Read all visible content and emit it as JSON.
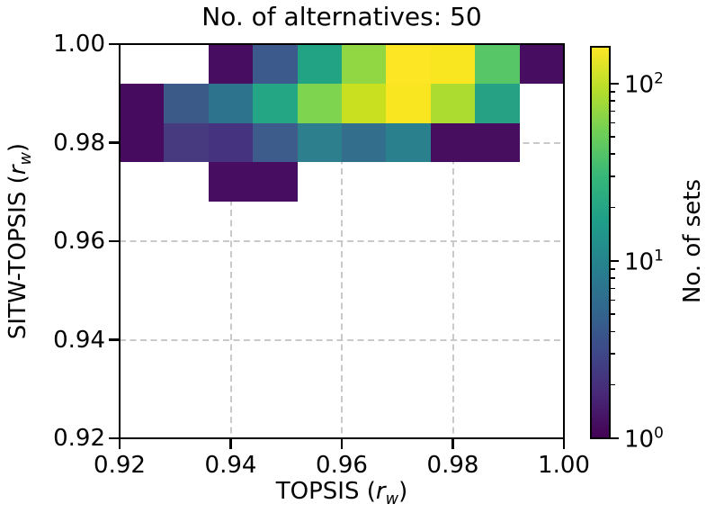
{
  "title": "No. of alternatives: 50",
  "axes": {
    "x": {
      "label": {
        "pre": "TOPSIS (",
        "var": "r",
        "sub": "w",
        "post": ")"
      },
      "ticks": [
        "0.92",
        "0.94",
        "0.96",
        "0.98",
        "1.00"
      ],
      "tick_values": [
        0.92,
        0.94,
        0.96,
        0.98,
        1.0
      ],
      "min": 0.92,
      "max": 1.0
    },
    "y": {
      "label": {
        "pre": "SITW-TOPSIS (",
        "var": "r",
        "sub": "w",
        "post": ")"
      },
      "ticks": [
        "1.00",
        "0.98",
        "0.96",
        "0.94",
        "0.92"
      ],
      "tick_values": [
        1.0,
        0.98,
        0.96,
        0.94,
        0.92
      ],
      "min": 0.92,
      "max": 1.0
    },
    "grid": {
      "style": "dashed",
      "color": "#c9c9c9"
    }
  },
  "colorbar": {
    "label": "No. of sets",
    "scale": "log",
    "vmin": 1,
    "vmax": 161,
    "major_ticks": [
      {
        "base": "10",
        "exp": "2",
        "value": 100
      },
      {
        "base": "10",
        "exp": "1",
        "value": 10
      },
      {
        "base": "10",
        "exp": "0",
        "value": 1
      }
    ],
    "minor_tick_values": [
      2,
      3,
      4,
      5,
      6,
      7,
      8,
      9,
      20,
      30,
      40,
      50,
      60,
      70,
      80,
      90
    ],
    "colormap": "viridis",
    "gradient_stops": [
      "#440154",
      "#482878",
      "#3e4989",
      "#31688e",
      "#26828e",
      "#1f9e89",
      "#35b779",
      "#6ece58",
      "#b5de2b",
      "#fde725"
    ]
  },
  "chart_data": {
    "type": "heatmap",
    "title": "No. of alternatives: 50",
    "xlabel": "TOPSIS (r_w)",
    "ylabel": "SITW-TOPSIS (r_w)",
    "colorbar_label": "No. of sets",
    "color_scale": "log",
    "colormap": "viridis",
    "xlim": [
      0.92,
      1.0
    ],
    "ylim": [
      0.92,
      1.0
    ],
    "x_bin_edges": [
      0.92,
      0.928,
      0.936,
      0.944,
      0.952,
      0.96,
      0.968,
      0.976,
      0.984,
      0.992,
      1.0
    ],
    "y_bin_edges": [
      0.92,
      0.928,
      0.936,
      0.944,
      0.952,
      0.96,
      0.968,
      0.976,
      0.984,
      0.992,
      1.0
    ],
    "row_order": "row 0 is the top bin (y 0.992-1.000), rows increase downward",
    "empty_color": "#ffffff",
    "cells": [
      {
        "row": 0,
        "col": 2,
        "count_estimate": 1,
        "color": "#470d60"
      },
      {
        "row": 0,
        "col": 3,
        "count_estimate": 5,
        "color": "#3d5a8c"
      },
      {
        "row": 0,
        "col": 4,
        "count_estimate": 28,
        "color": "#22a384"
      },
      {
        "row": 0,
        "col": 5,
        "count_estimate": 95,
        "color": "#90d743"
      },
      {
        "row": 0,
        "col": 6,
        "count_estimate": 160,
        "color": "#fde725"
      },
      {
        "row": 0,
        "col": 7,
        "count_estimate": 150,
        "color": "#f9e621"
      },
      {
        "row": 0,
        "col": 8,
        "count_estimate": 65,
        "color": "#56c667"
      },
      {
        "row": 0,
        "col": 9,
        "count_estimate": 1,
        "color": "#470d60"
      },
      {
        "row": 1,
        "col": 0,
        "count_estimate": 1,
        "color": "#460b5e"
      },
      {
        "row": 1,
        "col": 1,
        "count_estimate": 5,
        "color": "#3c5a88"
      },
      {
        "row": 1,
        "col": 2,
        "count_estimate": 9,
        "color": "#2e738e"
      },
      {
        "row": 1,
        "col": 3,
        "count_estimate": 29,
        "color": "#24a583"
      },
      {
        "row": 1,
        "col": 4,
        "count_estimate": 88,
        "color": "#7ed34f"
      },
      {
        "row": 1,
        "col": 5,
        "count_estimate": 125,
        "color": "#c8e01f"
      },
      {
        "row": 1,
        "col": 6,
        "count_estimate": 150,
        "color": "#f9e621"
      },
      {
        "row": 1,
        "col": 7,
        "count_estimate": 110,
        "color": "#addc30"
      },
      {
        "row": 1,
        "col": 8,
        "count_estimate": 28,
        "color": "#26a184"
      },
      {
        "row": 2,
        "col": 0,
        "count_estimate": 1,
        "color": "#460b5e"
      },
      {
        "row": 2,
        "col": 1,
        "count_estimate": 2,
        "color": "#483a7e"
      },
      {
        "row": 2,
        "col": 2,
        "count_estimate": 2,
        "color": "#46337f"
      },
      {
        "row": 2,
        "col": 3,
        "count_estimate": 5,
        "color": "#3d5c8b"
      },
      {
        "row": 2,
        "col": 4,
        "count_estimate": 11,
        "color": "#2d7f8e"
      },
      {
        "row": 2,
        "col": 5,
        "count_estimate": 8,
        "color": "#336e8d"
      },
      {
        "row": 2,
        "col": 6,
        "count_estimate": 11,
        "color": "#2b808d"
      },
      {
        "row": 2,
        "col": 7,
        "count_estimate": 1,
        "color": "#470d5f"
      },
      {
        "row": 2,
        "col": 8,
        "count_estimate": 1,
        "color": "#470d5f"
      },
      {
        "row": 3,
        "col": 2,
        "count_estimate": 1,
        "color": "#470d60"
      },
      {
        "row": 3,
        "col": 3,
        "count_estimate": 1,
        "color": "#470d60"
      }
    ]
  }
}
